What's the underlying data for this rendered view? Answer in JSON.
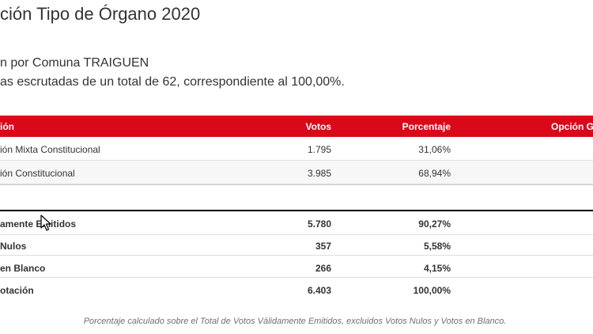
{
  "header": {
    "title": "ción Tipo de Órgano 2020",
    "subtitle1": "n por Comuna TRAIGUEN",
    "subtitle2": "as escrutadas de un total de 62, correspondiente al 100,00%."
  },
  "table": {
    "columns": {
      "option": "ión",
      "votes": "Votos",
      "percent": "Porcentaje",
      "winner": "Opción G"
    },
    "rows": [
      {
        "option": "ión Mixta Constitucional",
        "votes": "1.795",
        "percent": "31,06%"
      },
      {
        "option": "ión Constitucional",
        "votes": "3.985",
        "percent": "68,94%"
      }
    ],
    "totals": [
      {
        "label": "amente Emitidos",
        "votes": "5.780",
        "percent": "90,27%"
      },
      {
        "label": "Nulos",
        "votes": "357",
        "percent": "5,58%"
      },
      {
        "label": "en Blanco",
        "votes": "266",
        "percent": "4,15%"
      },
      {
        "label": "otación",
        "votes": "6.403",
        "percent": "100,00%"
      }
    ]
  },
  "footnote": "Porcentaje calculado sobre el Total de Votos Válidamente Emitidos, excluidos Votos Nulos y Votos en Blanco.",
  "colors": {
    "header_bg": "#d9091a",
    "text": "#333333"
  }
}
